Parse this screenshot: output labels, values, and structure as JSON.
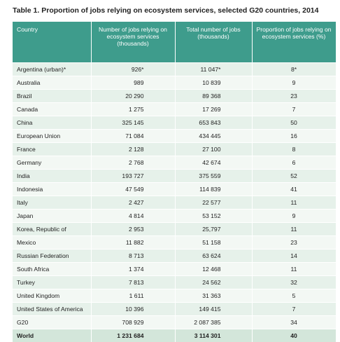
{
  "title": "Table 1.  Proportion of jobs relying on ecosystem services, selected G20 countries, 2014",
  "table": {
    "header": [
      "Country",
      "Number of jobs relying on ecosystem services (thousands)",
      "Total number of jobs (thousands)",
      "Proportion of jobs relying on ecosystem services (%)"
    ],
    "rows": [
      [
        "Argentina (urban)*",
        "926*",
        "11 047*",
        "8*"
      ],
      [
        "Australia",
        "989",
        "10 839",
        "9"
      ],
      [
        "Brazil",
        "20 290",
        "89 368",
        "23"
      ],
      [
        "Canada",
        "1 275",
        "17 269",
        "7"
      ],
      [
        "China",
        "325 145",
        "653 843",
        "50"
      ],
      [
        "European Union",
        "71 084",
        "434 445",
        "16"
      ],
      [
        "France",
        "2 128",
        "27 100",
        "8"
      ],
      [
        "Germany",
        "2 768",
        "42 674",
        "6"
      ],
      [
        "India",
        "193 727",
        "375 559",
        "52"
      ],
      [
        "Indonesia",
        "47 549",
        "114 839",
        "41"
      ],
      [
        "Italy",
        "2 427",
        "22 577",
        "11"
      ],
      [
        "Japan",
        "4 814",
        "53 152",
        "9"
      ],
      [
        "Korea, Republic of",
        "2 953",
        "25,797",
        "11"
      ],
      [
        "Mexico",
        "11 882",
        "51 158",
        "23"
      ],
      [
        "Russian Federation",
        "8 713",
        "63 624",
        "14"
      ],
      [
        "South Africa",
        "1 374",
        "12 468",
        "11"
      ],
      [
        "Turkey",
        "7 813",
        "24 562",
        "32"
      ],
      [
        "United Kingdom",
        "1 611",
        "31 363",
        "5"
      ],
      [
        "United States of America",
        "10 396",
        "149 415",
        "7"
      ],
      [
        "G20",
        "708 929",
        "2 087 385",
        "34"
      ],
      [
        "World",
        "1 231 684",
        "3 114 301",
        "40"
      ]
    ]
  }
}
